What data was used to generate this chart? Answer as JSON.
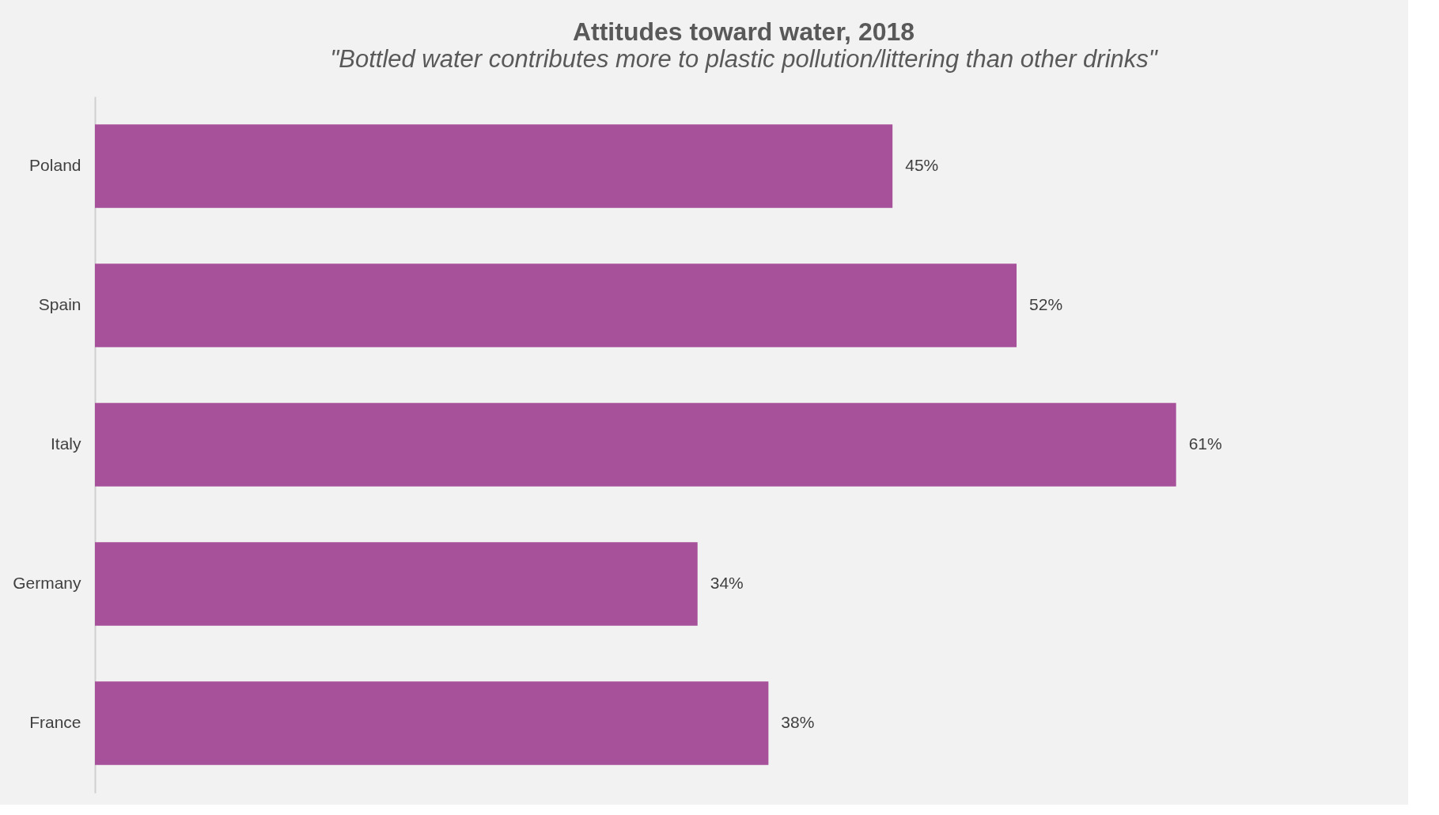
{
  "chart_data": {
    "type": "bar",
    "orientation": "horizontal",
    "title": "Attitudes toward water, 2018",
    "subtitle": "\"Bottled water contributes more to plastic pollution/littering than other drinks\"",
    "categories": [
      "Poland",
      "Spain",
      "Italy",
      "Germany",
      "France"
    ],
    "values": [
      45,
      52,
      61,
      34,
      38
    ],
    "value_labels": [
      "45%",
      "52%",
      "61%",
      "34%",
      "38%"
    ],
    "color": "#a6519a"
  }
}
